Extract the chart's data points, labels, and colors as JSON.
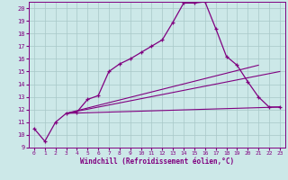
{
  "xlabel": "Windchill (Refroidissement éolien,°C)",
  "background_color": "#cce8e8",
  "line_color": "#800080",
  "grid_color": "#a8c8c8",
  "xlim": [
    -0.5,
    23.5
  ],
  "ylim": [
    9,
    20.5
  ],
  "yticks": [
    9,
    10,
    11,
    12,
    13,
    14,
    15,
    16,
    17,
    18,
    19,
    20
  ],
  "xticks": [
    0,
    1,
    2,
    3,
    4,
    5,
    6,
    7,
    8,
    9,
    10,
    11,
    12,
    13,
    14,
    15,
    16,
    17,
    18,
    19,
    20,
    21,
    22,
    23
  ],
  "curve_x": [
    0,
    1,
    2,
    3,
    4,
    5,
    6,
    7,
    8,
    9,
    10,
    11,
    12,
    13,
    14,
    15,
    16,
    17,
    18,
    19,
    20,
    21,
    22,
    23
  ],
  "curve_y": [
    10.5,
    9.5,
    11.0,
    11.7,
    11.8,
    12.8,
    13.1,
    15.0,
    15.6,
    16.0,
    16.5,
    17.0,
    17.5,
    18.9,
    20.4,
    20.4,
    20.5,
    18.4,
    16.2,
    15.5,
    14.2,
    13.0,
    12.2,
    12.2
  ],
  "line1_x": [
    3,
    23
  ],
  "line1_y": [
    11.7,
    12.2
  ],
  "line2_x": [
    3,
    21
  ],
  "line2_y": [
    11.7,
    15.5
  ],
  "line3_x": [
    3,
    23
  ],
  "line3_y": [
    11.7,
    15.0
  ]
}
